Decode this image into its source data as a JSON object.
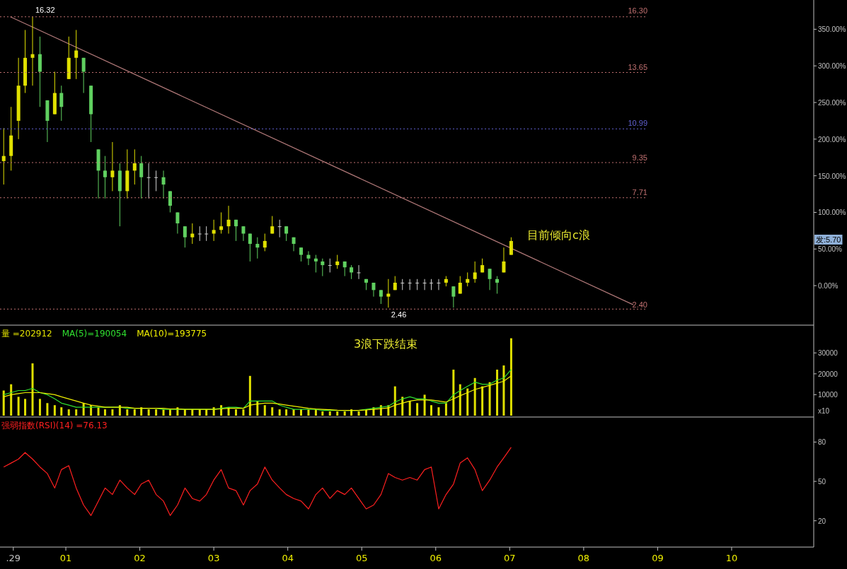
{
  "chart_data": [
    {
      "type": "candlestick",
      "xlim": [
        0.11,
        11.11
      ],
      "ylim": [
        -52,
        388
      ],
      "tick_labels": "y",
      "yticks": [
        {
          "value": 0,
          "label": "0.00%"
        },
        {
          "value": 50,
          "label": "50.00%"
        },
        {
          "value": 100,
          "label": "100.00%"
        },
        {
          "value": 150,
          "label": "150.00%"
        },
        {
          "value": 200,
          "label": "200.00%"
        },
        {
          "value": 250,
          "label": "250.00%"
        },
        {
          "value": 300,
          "label": "300.00%"
        },
        {
          "value": 350,
          "label": "350.00%"
        }
      ],
      "x": [
        0.16,
        0.26,
        0.36,
        0.45,
        0.55,
        0.65,
        0.75,
        0.85,
        0.94,
        1.04,
        1.14,
        1.24,
        1.34,
        1.44,
        1.53,
        1.63,
        1.73,
        1.83,
        1.93,
        2.02,
        2.12,
        2.22,
        2.32,
        2.41,
        2.51,
        2.61,
        2.71,
        2.81,
        2.9,
        3.0,
        3.1,
        3.2,
        3.3,
        3.4,
        3.49,
        3.59,
        3.69,
        3.79,
        3.89,
        3.98,
        4.08,
        4.18,
        4.28,
        4.38,
        4.47,
        4.57,
        4.67,
        4.77,
        4.86,
        4.96,
        5.06,
        5.16,
        5.26,
        5.36,
        5.45,
        5.55,
        5.65,
        5.75,
        5.85,
        5.94,
        6.04,
        6.14,
        6.24,
        6.33,
        6.43,
        6.53,
        6.63,
        6.73,
        6.83,
        6.92,
        7.02
      ],
      "ohlc": [
        [
          170,
          215,
          138,
          177
        ],
        [
          177,
          244,
          157,
          205
        ],
        [
          225,
          311,
          200,
          273
        ],
        [
          273,
          349,
          263,
          311
        ],
        [
          311,
          367,
          273,
          316
        ],
        [
          316,
          340,
          244,
          292
        ],
        [
          253,
          253,
          196,
          225
        ],
        [
          234,
          292,
          234,
          263
        ],
        [
          263,
          273,
          225,
          244
        ],
        [
          282,
          340,
          282,
          311
        ],
        [
          311,
          349,
          282,
          321
        ],
        [
          311,
          311,
          263,
          292
        ],
        [
          273,
          273,
          196,
          234
        ],
        [
          186,
          186,
          119,
          157
        ],
        [
          157,
          177,
          119,
          148
        ],
        [
          148,
          196,
          129,
          157
        ],
        [
          157,
          167,
          81,
          129
        ],
        [
          129,
          186,
          119,
          157
        ],
        [
          157,
          186,
          138,
          167
        ],
        [
          167,
          177,
          119,
          148
        ],
        [
          148,
          167,
          119,
          148
        ],
        [
          148,
          157,
          129,
          148
        ],
        [
          148,
          157,
          119,
          138
        ],
        [
          129,
          129,
          100,
          109
        ],
        [
          100,
          100,
          71,
          85
        ],
        [
          81,
          81,
          52,
          66
        ],
        [
          66,
          85,
          57,
          71
        ],
        [
          71,
          81,
          61,
          71
        ],
        [
          71,
          81,
          61,
          71
        ],
        [
          71,
          90,
          61,
          76
        ],
        [
          76,
          100,
          71,
          81
        ],
        [
          81,
          109,
          71,
          90
        ],
        [
          90,
          90,
          61,
          81
        ],
        [
          81,
          81,
          61,
          71
        ],
        [
          71,
          71,
          33,
          57
        ],
        [
          57,
          66,
          37,
          52
        ],
        [
          52,
          71,
          47,
          61
        ],
        [
          71,
          95,
          71,
          81
        ],
        [
          81,
          90,
          66,
          81
        ],
        [
          81,
          81,
          61,
          71
        ],
        [
          66,
          66,
          47,
          57
        ],
        [
          52,
          52,
          33,
          42
        ],
        [
          42,
          47,
          28,
          37
        ],
        [
          37,
          42,
          18,
          33
        ],
        [
          33,
          37,
          13,
          28
        ],
        [
          28,
          37,
          18,
          28
        ],
        [
          28,
          42,
          23,
          33
        ],
        [
          33,
          33,
          13,
          25
        ],
        [
          25,
          28,
          9,
          18
        ],
        [
          18,
          28,
          9,
          18
        ],
        [
          9,
          9,
          -6,
          4
        ],
        [
          4,
          4,
          -15,
          -6
        ],
        [
          -6,
          -6,
          -25,
          -15
        ],
        [
          -15,
          9,
          -30,
          -11
        ],
        [
          -6,
          13,
          -6,
          4
        ],
        [
          4,
          9,
          -6,
          4
        ],
        [
          4,
          9,
          -6,
          4
        ],
        [
          4,
          9,
          -6,
          4
        ],
        [
          4,
          9,
          -6,
          4
        ],
        [
          4,
          9,
          -6,
          4
        ],
        [
          4,
          9,
          -6,
          4
        ],
        [
          4,
          13,
          -1,
          9
        ],
        [
          -1,
          -1,
          -30,
          -15
        ],
        [
          -11,
          13,
          -11,
          4
        ],
        [
          4,
          18,
          -1,
          9
        ],
        [
          9,
          33,
          4,
          18
        ],
        [
          18,
          37,
          18,
          28
        ],
        [
          23,
          23,
          -6,
          9
        ],
        [
          9,
          13,
          -11,
          4
        ],
        [
          18,
          52,
          18,
          33
        ],
        [
          42,
          66,
          42,
          61
        ]
      ],
      "colors": [
        "#e0e000",
        "#e0e000",
        "#e0e000",
        "#e0e000",
        "#e0e000",
        "#60d060",
        "#60d060",
        "#e0e000",
        "#60d060",
        "#e0e000",
        "#e0e000",
        "#60d060",
        "#60d060",
        "#60d060",
        "#60d060",
        "#e0e000",
        "#60d060",
        "#e0e000",
        "#e0e000",
        "#60d060",
        "#d0d0d0",
        "#d0d0d0",
        "#60d060",
        "#60d060",
        "#60d060",
        "#60d060",
        "#e0e000",
        "#d0d0d0",
        "#d0d0d0",
        "#e0e000",
        "#e0e000",
        "#e0e000",
        "#60d060",
        "#60d060",
        "#60d060",
        "#60d060",
        "#e0e000",
        "#e0e000",
        "#d0d0d0",
        "#60d060",
        "#60d060",
        "#60d060",
        "#60d060",
        "#60d060",
        "#60d060",
        "#d0d0d0",
        "#e0e000",
        "#60d060",
        "#60d060",
        "#d0d0d0",
        "#60d060",
        "#60d060",
        "#60d060",
        "#e0e000",
        "#e0e000",
        "#d0d0d0",
        "#d0d0d0",
        "#d0d0d0",
        "#d0d0d0",
        "#d0d0d0",
        "#d0d0d0",
        "#e0e000",
        "#60d060",
        "#e0e000",
        "#e0e000",
        "#e0e000",
        "#e0e000",
        "#60d060",
        "#60d060",
        "#e0e000",
        "#e0e000"
      ],
      "series": [
        {
          "type": "line",
          "x": [
            0.25,
            8.67
          ],
          "values": [
            367,
            -26
          ],
          "color": "#b07878"
        }
      ],
      "ref_lines": [
        {
          "axis": "y",
          "value": 367,
          "color": "#c07070",
          "line_style": "dotted"
        },
        {
          "axis": "y",
          "value": 291,
          "color": "#c07070",
          "line_style": "dotted"
        },
        {
          "axis": "y",
          "value": 214,
          "color": "#6060d0",
          "line_style": "dotted"
        },
        {
          "axis": "y",
          "value": 168,
          "color": "#c07070",
          "line_style": "dotted"
        },
        {
          "axis": "y",
          "value": 120,
          "color": "#c07070",
          "line_style": "dotted"
        },
        {
          "axis": "y",
          "value": -32,
          "color": "#c07070",
          "line_style": "dotted"
        }
      ],
      "annotations": [
        {
          "text": "16.32",
          "x": 0.55,
          "y": 367
        },
        {
          "text": "2.46",
          "x": 5.36,
          "y": -30
        },
        "目前倾向c浪",
        "3浪下跌结束",
        "发:5.70",
        "16.30",
        "13.65",
        "10.99",
        "9.35",
        "7.71",
        "2.40"
      ]
    },
    {
      "type": "bar",
      "xlim": [
        0.11,
        11.11
      ],
      "ylim": [
        0,
        42600
      ],
      "tick_labels": "y",
      "yticks": [
        10000,
        20000,
        30000
      ],
      "ylabel": "x10",
      "legend": "top left",
      "x": [
        0.16,
        0.26,
        0.36,
        0.45,
        0.55,
        0.65,
        0.75,
        0.85,
        0.94,
        1.04,
        1.14,
        1.24,
        1.34,
        1.44,
        1.53,
        1.63,
        1.73,
        1.83,
        1.93,
        2.02,
        2.12,
        2.22,
        2.32,
        2.41,
        2.51,
        2.61,
        2.71,
        2.81,
        2.9,
        3.0,
        3.1,
        3.2,
        3.3,
        3.4,
        3.49,
        3.59,
        3.69,
        3.79,
        3.89,
        3.98,
        4.08,
        4.18,
        4.28,
        4.38,
        4.47,
        4.57,
        4.67,
        4.77,
        4.86,
        4.96,
        5.06,
        5.16,
        5.26,
        5.36,
        5.45,
        5.55,
        5.65,
        5.75,
        5.85,
        5.94,
        6.04,
        6.14,
        6.24,
        6.33,
        6.43,
        6.53,
        6.63,
        6.73,
        6.83,
        6.92,
        7.02
      ],
      "series": [
        {
          "name": "量 =202912",
          "color": "#e0e000",
          "values": [
            12000,
            15000,
            9000,
            8000,
            25000,
            8000,
            6000,
            5000,
            4000,
            3000,
            3000,
            6000,
            5000,
            4000,
            3000,
            3000,
            5000,
            3000,
            3000,
            4000,
            3000,
            3000,
            3000,
            3000,
            4000,
            3000,
            3000,
            3000,
            3000,
            4000,
            5000,
            4000,
            3000,
            3000,
            19000,
            7000,
            5000,
            4000,
            3000,
            3000,
            3000,
            3000,
            3000,
            3000,
            2000,
            2000,
            2000,
            2000,
            3000,
            2000,
            3000,
            4000,
            5000,
            5000,
            14000,
            9000,
            7000,
            6000,
            10000,
            5000,
            4000,
            6000,
            22000,
            15000,
            13000,
            18000,
            14000,
            16000,
            22000,
            24000,
            37000
          ]
        },
        {
          "name": "MA(5)=190054",
          "type": "line",
          "color": "#30e030",
          "values": [
            10000,
            11000,
            12000,
            12000,
            13000,
            11000,
            10000,
            8000,
            6000,
            5000,
            4000,
            4000,
            4000,
            4000,
            4000,
            4000,
            4000,
            3500,
            3500,
            3500,
            3500,
            3500,
            3000,
            3000,
            3000,
            3000,
            3000,
            3000,
            3000,
            3000,
            3500,
            4000,
            4000,
            3500,
            7000,
            7000,
            7000,
            7000,
            5000,
            4000,
            3000,
            3000,
            3000,
            3000,
            2500,
            2500,
            2500,
            2500,
            2500,
            2500,
            3000,
            3500,
            4000,
            4500,
            6500,
            8000,
            9000,
            8000,
            8000,
            7000,
            6000,
            6000,
            10000,
            12000,
            14000,
            16000,
            15000,
            15000,
            17000,
            18000,
            22000
          ]
        },
        {
          "name": "MA(10)=193775",
          "type": "line",
          "color": "#f0f000",
          "values": [
            9000,
            10000,
            10500,
            11000,
            11000,
            11000,
            10500,
            10000,
            9000,
            8000,
            7000,
            6000,
            5000,
            4500,
            4000,
            4000,
            4000,
            4000,
            3500,
            3500,
            3500,
            3500,
            3500,
            3200,
            3200,
            3000,
            3000,
            3000,
            3000,
            3000,
            3200,
            3500,
            3500,
            3500,
            5000,
            5500,
            6000,
            6000,
            5500,
            5000,
            4500,
            4000,
            3500,
            3200,
            3000,
            2800,
            2600,
            2500,
            2500,
            2500,
            2700,
            3000,
            3300,
            3700,
            5000,
            6000,
            7000,
            7500,
            7500,
            7500,
            7000,
            6500,
            8000,
            9500,
            11000,
            12500,
            13500,
            14500,
            15500,
            16500,
            19000
          ]
        }
      ]
    },
    {
      "type": "line",
      "xlim": [
        0.11,
        11.11
      ],
      "ylim": [
        1,
        98
      ],
      "yticks": [
        20,
        50,
        80
      ],
      "legend": "top left",
      "xticks": [
        {
          "value": 0.29,
          "label": ".29"
        },
        {
          "value": 1,
          "label": "01"
        },
        {
          "value": 2,
          "label": "02"
        },
        {
          "value": 3,
          "label": "03"
        },
        {
          "value": 4,
          "label": "04"
        },
        {
          "value": 5,
          "label": "05"
        },
        {
          "value": 6,
          "label": "06"
        },
        {
          "value": 7,
          "label": "07"
        },
        {
          "value": 8,
          "label": "08"
        },
        {
          "value": 9,
          "label": "09"
        },
        {
          "value": 10,
          "label": "10"
        }
      ],
      "x": [
        0.16,
        0.26,
        0.36,
        0.45,
        0.55,
        0.65,
        0.75,
        0.85,
        0.94,
        1.04,
        1.14,
        1.24,
        1.34,
        1.44,
        1.53,
        1.63,
        1.73,
        1.83,
        1.93,
        2.02,
        2.12,
        2.22,
        2.32,
        2.41,
        2.51,
        2.61,
        2.71,
        2.81,
        2.9,
        3.0,
        3.1,
        3.2,
        3.3,
        3.4,
        3.49,
        3.59,
        3.69,
        3.79,
        3.89,
        3.98,
        4.08,
        4.18,
        4.28,
        4.38,
        4.47,
        4.57,
        4.67,
        4.77,
        4.86,
        4.96,
        5.06,
        5.16,
        5.26,
        5.36,
        5.45,
        5.55,
        5.65,
        5.75,
        5.85,
        5.94,
        6.04,
        6.14,
        6.24,
        6.33,
        6.43,
        6.53,
        6.63,
        6.73,
        6.83,
        6.92,
        7.02
      ],
      "series": [
        {
          "name": "强弱指数(RSI)(14) =76.13",
          "color": "#ff2020",
          "values": [
            61,
            64,
            67,
            72,
            67,
            61,
            56,
            45,
            59,
            62,
            45,
            32,
            24,
            35,
            45,
            40,
            51,
            45,
            40,
            48,
            51,
            40,
            35,
            24,
            32,
            45,
            37,
            35,
            40,
            51,
            59,
            45,
            43,
            32,
            43,
            48,
            61,
            51,
            45,
            40,
            37,
            35,
            29,
            40,
            45,
            37,
            43,
            40,
            45,
            37,
            29,
            32,
            40,
            56,
            53,
            51,
            53,
            51,
            59,
            61,
            29,
            40,
            48,
            64,
            68,
            59,
            43,
            51,
            61,
            68,
            76
          ]
        }
      ]
    }
  ]
}
